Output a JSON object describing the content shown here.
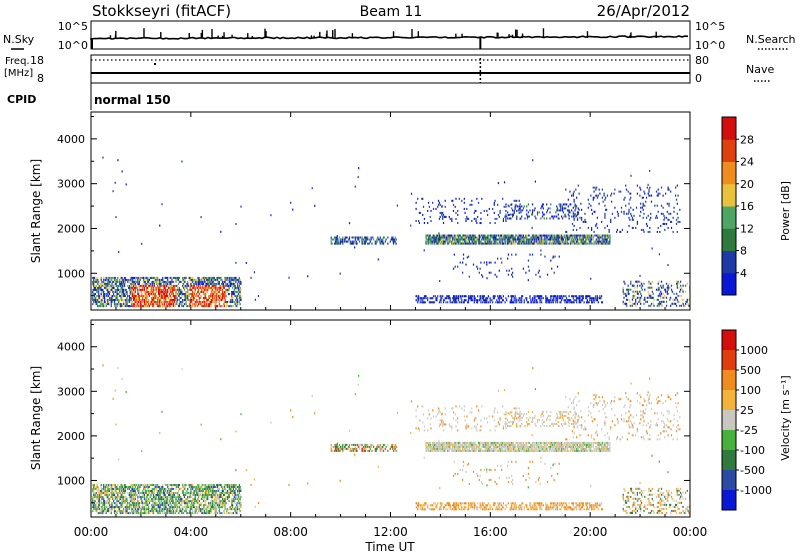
{
  "header": {
    "station": "Stokkseyri (fitACF)",
    "beam": "Beam 11",
    "date": "26/Apr/2012"
  },
  "top_panels": {
    "nsky_label": "N.Sky",
    "nsky_ticks": [
      "10^5",
      "10^0"
    ],
    "nsearch_label": "N.Search",
    "nsearch_ticks": [
      "10^5",
      "10^0"
    ],
    "freq_label": "Freq.",
    "freq_unit": "[MHz]",
    "freq_ticks": [
      "18",
      "8"
    ],
    "nave_label": "Nave",
    "nave_ticks": [
      "80",
      "0"
    ],
    "cpid_label": "CPID",
    "cpid_value": "normal 150"
  },
  "colors": {
    "power_scale": [
      "#0a17d6",
      "#1e3aa8",
      "#2d7a3c",
      "#4ea564",
      "#e8c23a",
      "#f08c1e",
      "#e0400e",
      "#d40d0d"
    ],
    "velocity_scale": [
      "#d60d0d",
      "#e03c0e",
      "#f08c1e",
      "#f3b23a",
      "#c8c8c0",
      "#46b23c",
      "#2f7a3c",
      "#2a4aa6",
      "#0a17d6"
    ],
    "ground_scatter": "#c8c8c0"
  },
  "chart_data": [
    {
      "type": "heatmap",
      "title": "Power",
      "ylabel": "Slant Range [km]",
      "xlabel": "Time UT",
      "x_ticks": [
        "00:00",
        "04:00",
        "08:00",
        "12:00",
        "16:00",
        "20:00",
        "00:00"
      ],
      "xlim_hours": [
        0,
        24
      ],
      "y_ticks": [
        "1000",
        "2000",
        "3000",
        "4000"
      ],
      "ylim_km": [
        180,
        4600
      ],
      "colorbar_label": "Power [dB]",
      "colorbar_ticks": [
        "4",
        "8",
        "12",
        "16",
        "20",
        "24",
        "28"
      ],
      "colorbar_range": [
        0,
        32
      ],
      "regions": [
        {
          "t": [
            0.0,
            6.0
          ],
          "r": [
            200,
            800
          ],
          "level": "high-near"
        },
        {
          "t": [
            9.6,
            12.0
          ],
          "r": [
            1650,
            1800
          ],
          "level": "low"
        },
        {
          "t": [
            13.5,
            20.5
          ],
          "r": [
            1650,
            1850
          ],
          "level": "medium"
        },
        {
          "t": [
            13.0,
            17.0
          ],
          "r": [
            2100,
            2600
          ],
          "level": "low"
        },
        {
          "t": [
            16.5,
            19.5
          ],
          "r": [
            2200,
            2500
          ],
          "level": "low"
        },
        {
          "t": [
            19.0,
            23.5
          ],
          "r": [
            1900,
            2900
          ],
          "level": "low"
        },
        {
          "t": [
            13.0,
            20.5
          ],
          "r": [
            330,
            470
          ],
          "level": "low"
        },
        {
          "t": [
            21.3,
            24.0
          ],
          "r": [
            300,
            800
          ],
          "level": "low"
        }
      ]
    },
    {
      "type": "heatmap",
      "title": "Velocity",
      "ylabel": "Slant Range [km]",
      "xlabel": "Time UT",
      "x_ticks": [
        "00:00",
        "04:00",
        "08:00",
        "12:00",
        "16:00",
        "20:00",
        "00:00"
      ],
      "xlim_hours": [
        0,
        24
      ],
      "y_ticks": [
        "1000",
        "2000",
        "3000",
        "4000"
      ],
      "ylim_km": [
        180,
        4600
      ],
      "colorbar_label": "Velocity [m s⁻¹]",
      "colorbar_ticks": [
        "1000",
        "500",
        "100",
        "25",
        "-25",
        "-100",
        "-500",
        "-1000"
      ],
      "colorbar_range": [
        -1000,
        1000
      ]
    }
  ]
}
